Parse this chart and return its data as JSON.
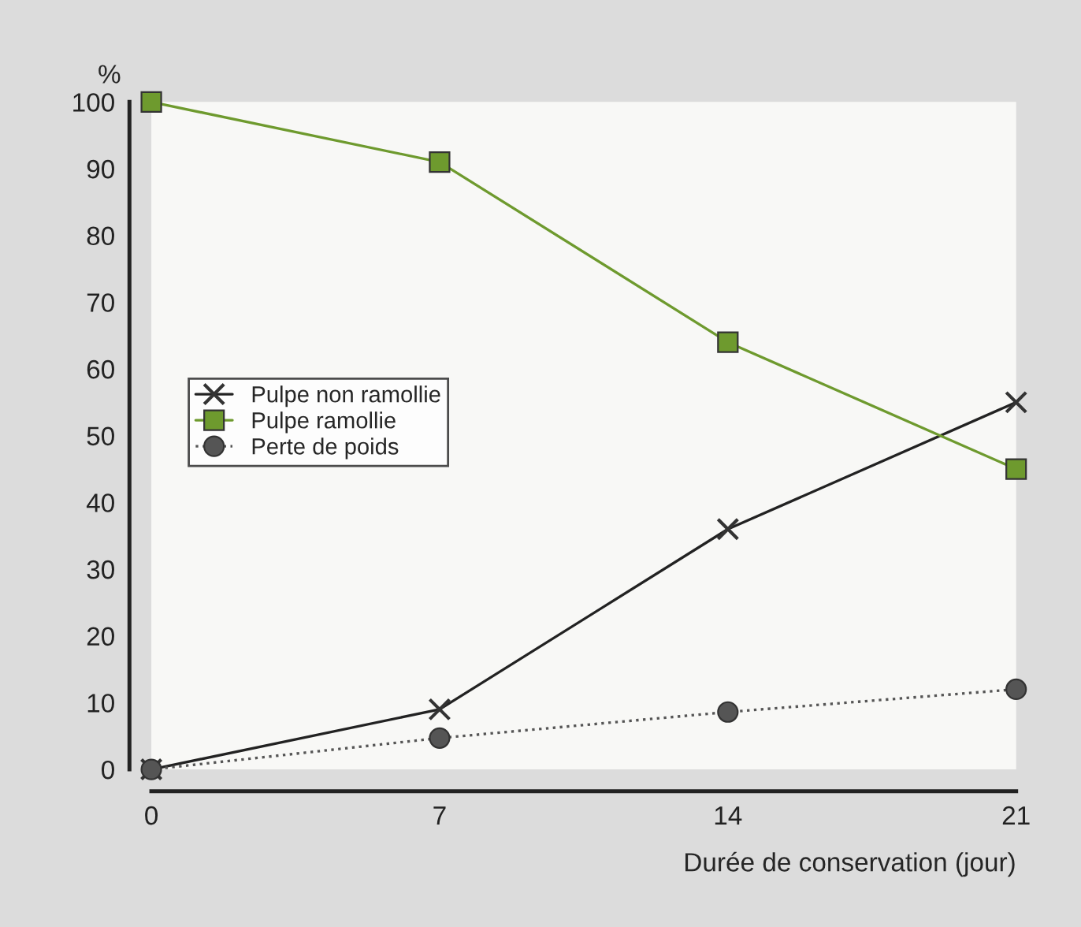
{
  "chart_data": {
    "type": "line",
    "ylabel": "%",
    "xlabel": "Durée de conservation (jour)",
    "x": [
      0,
      7,
      14,
      21
    ],
    "xlim": [
      0,
      21
    ],
    "xticks": [
      0,
      7,
      14,
      21
    ],
    "ylim": [
      0,
      100
    ],
    "yticks": [
      0,
      10,
      20,
      30,
      40,
      50,
      60,
      70,
      80,
      90,
      100
    ],
    "series": [
      {
        "name": "Pulpe non ramollie",
        "color": "#222222",
        "marker": "cross",
        "line_style": "solid",
        "values": [
          0,
          9,
          36,
          55
        ]
      },
      {
        "name": "Pulpe ramollie",
        "color": "#6e9a2e",
        "marker": "square",
        "line_style": "solid",
        "values": [
          100,
          91,
          64,
          45
        ]
      },
      {
        "name": "Perte de poids",
        "color": "#555555",
        "marker": "circle",
        "line_style": "dotted",
        "values": [
          0,
          4.7,
          8.6,
          12
        ]
      }
    ],
    "legend": "left",
    "grid": false
  }
}
